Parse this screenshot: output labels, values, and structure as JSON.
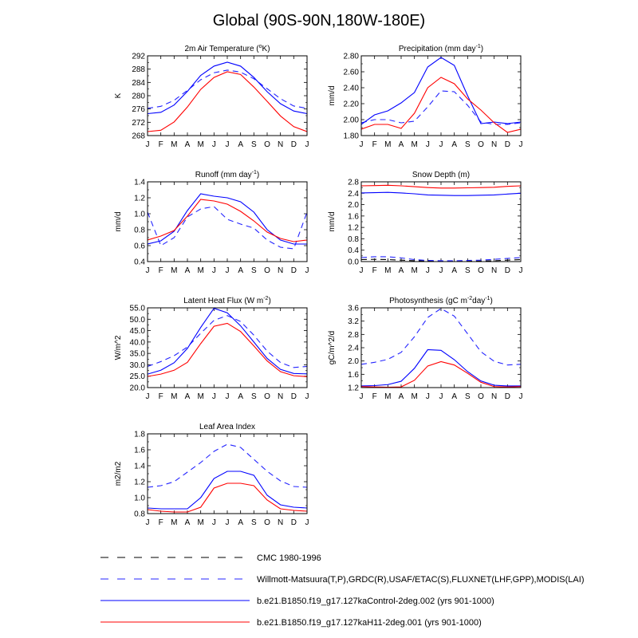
{
  "figure": {
    "title": "Global (90S-90N,180W-180E)"
  },
  "months": [
    "J",
    "F",
    "M",
    "A",
    "M",
    "J",
    "J",
    "A",
    "S",
    "O",
    "N",
    "D",
    "J"
  ],
  "colors": {
    "dash_black": "#000000",
    "dash_blue": "#2424ff",
    "blue": "#0000ff",
    "red": "#ff0000"
  },
  "legend": [
    {
      "label": "CMC 1980-1996",
      "style": "dashed",
      "color": "#000000"
    },
    {
      "label": "Willmott-Matsuura(T,P),GRDC(R),USAF/ETAC(S),FLUXNET(LHF,GPP),MODIS(LAI)",
      "style": "dashed",
      "color": "#2424ff"
    },
    {
      "label": "b.e21.B1850.f19_g17.127kaControl-2deg.002 (yrs 901-1000)",
      "style": "solid",
      "color": "#0000ff"
    },
    {
      "label": "b.e21.B1850.f19_g17.127kaH11-2deg.001 (yrs 901-1000)",
      "style": "solid",
      "color": "#ff0000"
    }
  ],
  "chart_data": [
    {
      "type": "line",
      "title": "2m Air Temperature (",
      "title_sup": "o",
      "title_end": "K)",
      "ylabel": "K",
      "ylim": [
        268,
        292
      ],
      "yticks": [
        "268",
        "272",
        "276",
        "280",
        "284",
        "288",
        "292"
      ],
      "series": [
        {
          "style": "dash_blue",
          "values": [
            276.2,
            276.8,
            278.6,
            281.6,
            284.8,
            286.9,
            287.7,
            287.1,
            285.1,
            282.1,
            279.1,
            276.9,
            276.2
          ]
        },
        {
          "style": "blue",
          "values": [
            274.6,
            275.0,
            277.2,
            281.3,
            286.1,
            288.9,
            290.1,
            288.9,
            285.5,
            281.2,
            277.6,
            275.4,
            274.6
          ]
        },
        {
          "style": "red",
          "values": [
            269.2,
            269.6,
            272.1,
            276.6,
            281.9,
            285.5,
            287.2,
            286.4,
            282.6,
            278.3,
            273.9,
            270.7,
            269.2
          ]
        }
      ]
    },
    {
      "type": "line",
      "title": "Precipitation (mm day",
      "title_sup": "-1",
      "title_end": ")",
      "ylabel": "mm/d",
      "ylim": [
        1.8,
        2.8
      ],
      "yticks": [
        "1.80",
        "2.00",
        "2.20",
        "2.40",
        "2.60",
        "2.80"
      ],
      "series": [
        {
          "style": "dash_blue",
          "values": [
            1.96,
            2.0,
            2.0,
            1.96,
            1.98,
            2.16,
            2.36,
            2.35,
            2.18,
            1.97,
            1.94,
            1.94,
            1.96
          ]
        },
        {
          "style": "blue",
          "values": [
            1.94,
            2.06,
            2.11,
            2.21,
            2.34,
            2.66,
            2.78,
            2.68,
            2.3,
            1.95,
            1.97,
            1.95,
            1.97
          ]
        },
        {
          "style": "red",
          "values": [
            1.88,
            1.94,
            1.94,
            1.89,
            2.08,
            2.4,
            2.53,
            2.45,
            2.26,
            2.12,
            1.96,
            1.84,
            1.88
          ]
        }
      ]
    },
    {
      "type": "line",
      "title": "Runoff (mm day",
      "title_sup": "-1",
      "title_end": ")",
      "ylabel": "mm/d",
      "ylim": [
        0.4,
        1.4
      ],
      "yticks": [
        "0.4",
        "0.6",
        "0.8",
        "1.0",
        "1.2",
        "1.4"
      ],
      "series": [
        {
          "style": "dash_blue",
          "values": [
            1.02,
            0.6,
            0.7,
            0.96,
            1.06,
            1.09,
            0.93,
            0.87,
            0.82,
            0.67,
            0.58,
            0.56,
            1.02
          ]
        },
        {
          "style": "blue",
          "values": [
            0.62,
            0.66,
            0.78,
            1.04,
            1.25,
            1.22,
            1.2,
            1.15,
            1.02,
            0.8,
            0.67,
            0.62,
            0.62
          ]
        },
        {
          "style": "red",
          "values": [
            0.67,
            0.72,
            0.79,
            0.97,
            1.18,
            1.16,
            1.12,
            1.03,
            0.91,
            0.77,
            0.69,
            0.65,
            0.67
          ]
        }
      ]
    },
    {
      "type": "line",
      "title": "Snow Depth (m)",
      "title_sup": "",
      "title_end": "",
      "ylabel": "mm/d",
      "ylim": [
        0.0,
        2.8
      ],
      "yticks": [
        "0.0",
        "0.4",
        "0.8",
        "1.2",
        "1.6",
        "2.0",
        "2.4",
        "2.8"
      ],
      "series": [
        {
          "style": "dash_black",
          "values": [
            0.07,
            0.08,
            0.07,
            0.05,
            0.03,
            0.02,
            0.01,
            0.01,
            0.01,
            0.02,
            0.03,
            0.05,
            0.07
          ]
        },
        {
          "style": "dash_blue",
          "values": [
            0.14,
            0.17,
            0.17,
            0.13,
            0.07,
            0.04,
            0.03,
            0.03,
            0.04,
            0.05,
            0.08,
            0.11,
            0.14
          ]
        },
        {
          "style": "blue",
          "values": [
            2.41,
            2.42,
            2.43,
            2.41,
            2.38,
            2.34,
            2.33,
            2.32,
            2.32,
            2.33,
            2.34,
            2.37,
            2.4
          ]
        },
        {
          "style": "red",
          "values": [
            2.66,
            2.67,
            2.68,
            2.66,
            2.63,
            2.6,
            2.58,
            2.58,
            2.59,
            2.6,
            2.61,
            2.64,
            2.66
          ]
        }
      ]
    },
    {
      "type": "line",
      "title": "Latent Heat Flux (W m",
      "title_sup": "-2",
      "title_end": ")",
      "ylabel": "W/m^2",
      "ylim": [
        20.0,
        55.0
      ],
      "yticks": [
        "20.0",
        "25.0",
        "30.0",
        "35.0",
        "40.0",
        "45.0",
        "50.0",
        "55.0"
      ],
      "series": [
        {
          "style": "dash_blue",
          "values": [
            29.3,
            31.4,
            34.0,
            37.8,
            43.8,
            49.5,
            51.6,
            49.0,
            43.0,
            36.0,
            31.0,
            28.8,
            29.3
          ]
        },
        {
          "style": "blue",
          "values": [
            25.9,
            27.6,
            30.9,
            37.2,
            46.4,
            54.8,
            52.8,
            47.1,
            40.0,
            32.8,
            28.0,
            26.2,
            26.0
          ]
        },
        {
          "style": "red",
          "values": [
            24.9,
            25.9,
            27.6,
            31.1,
            39.3,
            46.9,
            48.2,
            44.6,
            38.3,
            31.7,
            27.0,
            25.2,
            24.8
          ]
        }
      ]
    },
    {
      "type": "line",
      "title": "Photosynthesis (gC m",
      "title_sup": "-2",
      "title_mid": "day",
      "title_sup2": "-1",
      "title_end": ")",
      "ylabel": "gC/m^2/d",
      "ylim": [
        1.2,
        3.6
      ],
      "yticks": [
        "1.2",
        "1.6",
        "2.0",
        "2.4",
        "2.8",
        "3.2",
        "3.6"
      ],
      "series": [
        {
          "style": "dash_blue",
          "values": [
            1.9,
            1.96,
            2.05,
            2.26,
            2.73,
            3.31,
            3.58,
            3.35,
            2.82,
            2.28,
            1.99,
            1.88,
            1.9
          ]
        },
        {
          "style": "blue",
          "values": [
            1.25,
            1.26,
            1.29,
            1.39,
            1.78,
            2.34,
            2.32,
            2.04,
            1.68,
            1.4,
            1.27,
            1.25,
            1.25
          ]
        },
        {
          "style": "red",
          "values": [
            1.23,
            1.22,
            1.21,
            1.22,
            1.42,
            1.85,
            1.98,
            1.88,
            1.63,
            1.36,
            1.23,
            1.22,
            1.23
          ]
        }
      ]
    },
    {
      "type": "line",
      "title": "Leaf Area Index",
      "title_sup": "",
      "title_end": "",
      "ylabel": "m2/m2",
      "ylim": [
        0.8,
        1.8
      ],
      "yticks": [
        "0.8",
        "1.0",
        "1.2",
        "1.4",
        "1.6",
        "1.8"
      ],
      "series": [
        {
          "style": "dash_blue",
          "values": [
            1.13,
            1.15,
            1.2,
            1.32,
            1.44,
            1.58,
            1.67,
            1.63,
            1.48,
            1.33,
            1.21,
            1.14,
            1.13
          ]
        },
        {
          "style": "blue",
          "values": [
            0.87,
            0.86,
            0.86,
            0.86,
            1.0,
            1.24,
            1.33,
            1.33,
            1.28,
            1.03,
            0.91,
            0.88,
            0.87
          ]
        },
        {
          "style": "red",
          "values": [
            0.85,
            0.83,
            0.82,
            0.82,
            0.88,
            1.12,
            1.18,
            1.18,
            1.15,
            0.97,
            0.86,
            0.84,
            0.83
          ]
        }
      ]
    }
  ]
}
